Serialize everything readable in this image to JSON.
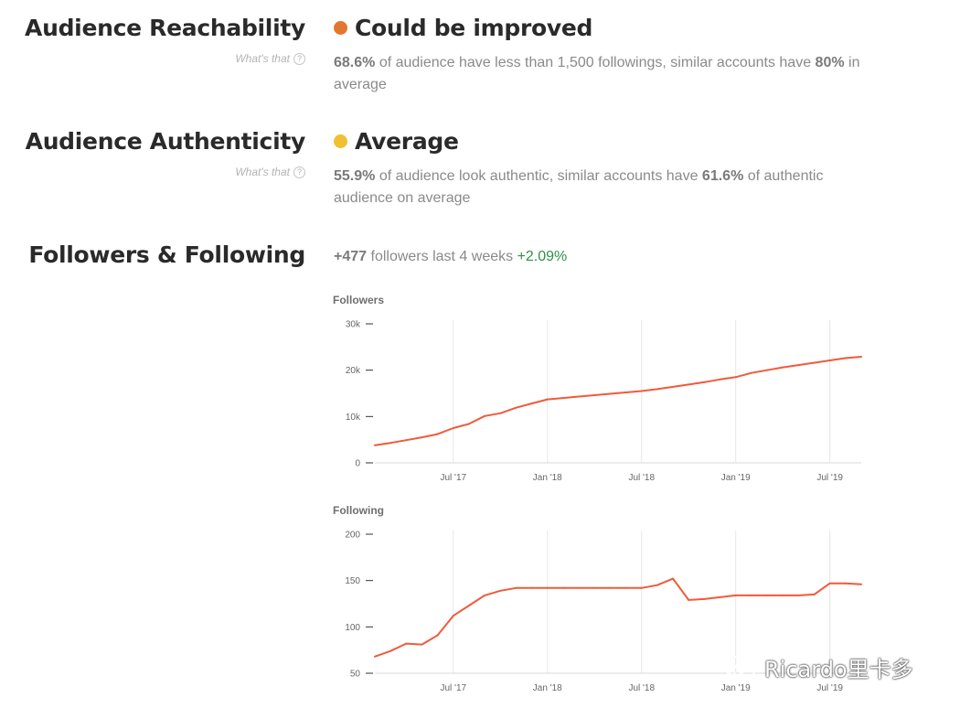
{
  "reachability": {
    "title": "Audience Reachability",
    "whats_that": "What's that",
    "status": "Could be improved",
    "status_color": "#e5762f",
    "percent": "68.6%",
    "text_mid": " of audience have less than 1,500 followings, similar accounts have ",
    "similar": "80%",
    "text_end": " in average"
  },
  "authenticity": {
    "title": "Audience Authenticity",
    "whats_that": "What's that",
    "status": "Average",
    "status_color": "#f0c030",
    "percent": "55.9%",
    "text_mid": " of audience look authentic, similar accounts have ",
    "similar": "61.6%",
    "text_end": " of authentic audience on average"
  },
  "followers_following": {
    "title": "Followers & Following",
    "delta": "+477",
    "period_text": " followers last 4 weeks ",
    "pct": "+2.09%"
  },
  "colors": {
    "line": "#f05a3a",
    "positive": "#2e9148"
  },
  "watermark": "Ricardo里卡多",
  "chart_data": [
    {
      "type": "line",
      "title": "Followers",
      "x_ticks": [
        "Jul '17",
        "Jan '18",
        "Jul '18",
        "Jan '19",
        "Jul '19"
      ],
      "xlim": [
        "2017-02",
        "2019-09"
      ],
      "y_ticks": [
        "0",
        "10k",
        "20k",
        "30k"
      ],
      "ylim": [
        0,
        30000
      ],
      "grid": "vertical",
      "series": [
        {
          "x": [
            "2017-02",
            "2017-03",
            "2017-04",
            "2017-05",
            "2017-06",
            "2017-07",
            "2017-08",
            "2017-09",
            "2017-10",
            "2017-11",
            "2017-12",
            "2018-01",
            "2018-02",
            "2018-03",
            "2018-04",
            "2018-05",
            "2018-06",
            "2018-07",
            "2018-08",
            "2018-09",
            "2018-10",
            "2018-11",
            "2018-12",
            "2019-01",
            "2019-02",
            "2019-03",
            "2019-04",
            "2019-05",
            "2019-06",
            "2019-07",
            "2019-08",
            "2019-09"
          ],
          "values": [
            3800,
            4300,
            4900,
            5500,
            6200,
            7500,
            8400,
            10100,
            10700,
            11900,
            12800,
            13700,
            14000,
            14300,
            14600,
            14900,
            15200,
            15500,
            15900,
            16400,
            16900,
            17400,
            18000,
            18500,
            19400,
            20000,
            20600,
            21100,
            21600,
            22100,
            22600,
            22900
          ]
        }
      ]
    },
    {
      "type": "line",
      "title": "Following",
      "x_ticks": [
        "Jul '17",
        "Jan '18",
        "Jul '18",
        "Jan '19",
        "Jul '19"
      ],
      "xlim": [
        "2017-02",
        "2019-09"
      ],
      "y_ticks": [
        "50",
        "100",
        "150",
        "200"
      ],
      "ylim": [
        50,
        200
      ],
      "grid": "vertical",
      "series": [
        {
          "x": [
            "2017-02",
            "2017-03",
            "2017-04",
            "2017-05",
            "2017-06",
            "2017-07",
            "2017-08",
            "2017-09",
            "2017-10",
            "2017-11",
            "2017-12",
            "2018-01",
            "2018-02",
            "2018-03",
            "2018-04",
            "2018-05",
            "2018-06",
            "2018-07",
            "2018-08",
            "2018-09",
            "2018-10",
            "2018-11",
            "2018-12",
            "2019-01",
            "2019-02",
            "2019-03",
            "2019-04",
            "2019-05",
            "2019-06",
            "2019-07",
            "2019-08",
            "2019-09"
          ],
          "values": [
            68,
            74,
            82,
            81,
            91,
            112,
            123,
            134,
            139,
            142,
            142,
            142,
            142,
            142,
            142,
            142,
            142,
            142,
            145,
            152,
            129,
            130,
            132,
            134,
            134,
            134,
            134,
            134,
            135,
            147,
            147,
            146
          ]
        }
      ]
    }
  ]
}
